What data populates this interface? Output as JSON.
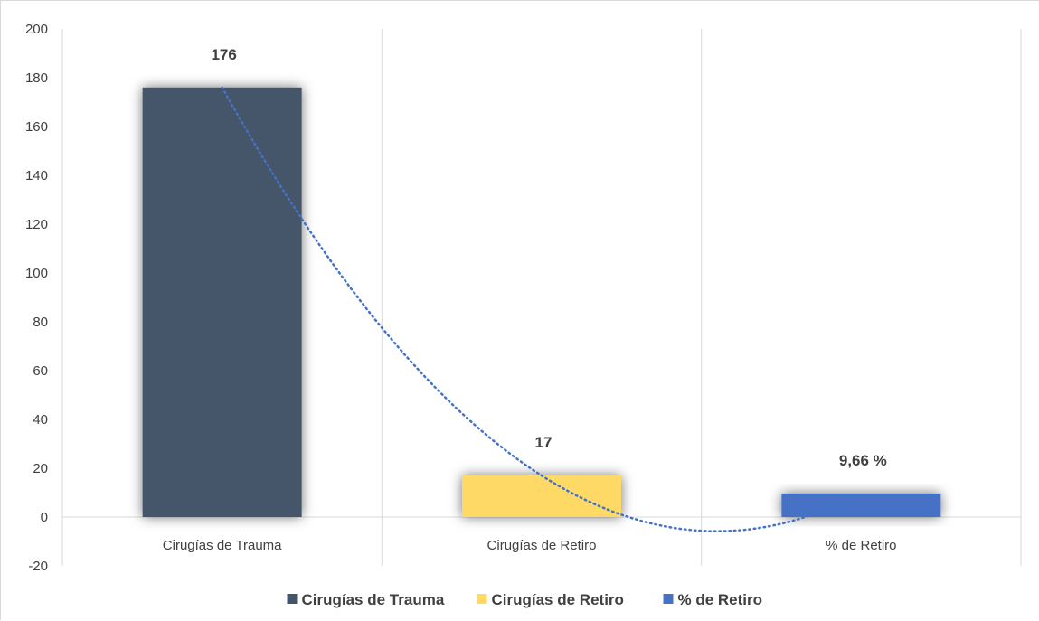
{
  "chart_data": {
    "type": "bar",
    "categories": [
      "Cirugías de Trauma",
      "Cirugías de Retiro",
      "% de Retiro"
    ],
    "values": [
      176,
      17,
      9.66
    ],
    "data_labels": [
      "176",
      "17",
      "9,66 %"
    ],
    "colors": [
      "#44546a",
      "#ffd966",
      "#4472c4"
    ],
    "legend": {
      "position": "bottom",
      "entries": [
        "Cirugías de Trauma",
        "Cirugías de Retiro",
        "% de Retiro"
      ]
    },
    "ylim": [
      -20,
      200
    ],
    "yticks": [
      -20,
      0,
      20,
      40,
      60,
      80,
      100,
      120,
      140,
      160,
      180,
      200
    ],
    "grid": {
      "vertical": true,
      "horizontal": false
    },
    "trendline": {
      "type": "polynomial",
      "order": 2,
      "style": "dotted",
      "color": "#4472c4"
    },
    "title": "",
    "xlabel": "",
    "ylabel": ""
  }
}
